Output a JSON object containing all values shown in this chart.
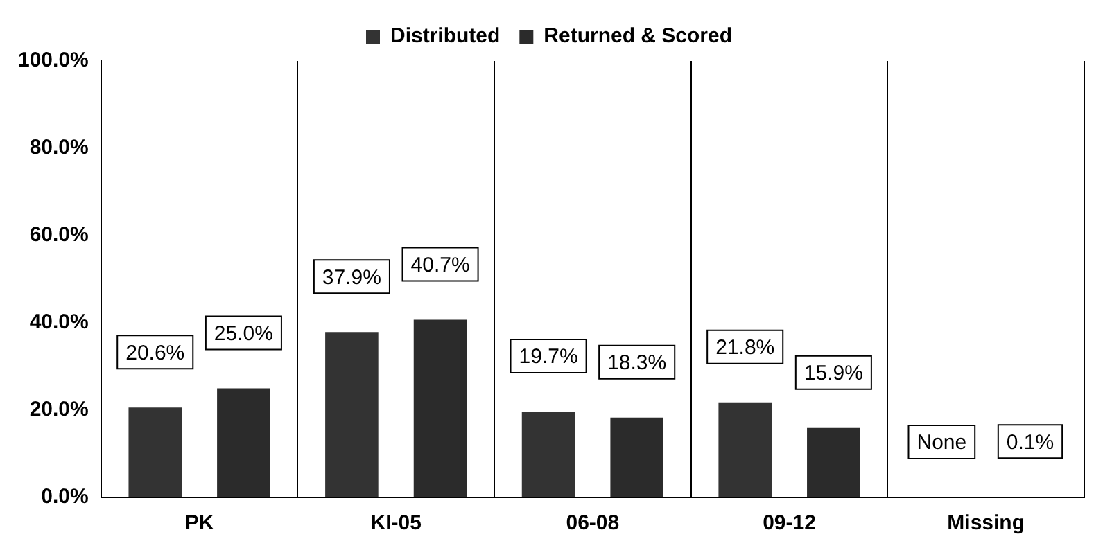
{
  "chart_data": {
    "type": "bar",
    "categories": [
      "PK",
      "KI-05",
      "06-08",
      "09-12",
      "Missing"
    ],
    "series": [
      {
        "name": "Distributed",
        "color": "#333333",
        "values": [
          20.6,
          37.9,
          19.7,
          21.8,
          null
        ],
        "value_labels": [
          "20.6%",
          "37.9%",
          "19.7%",
          "21.8%",
          "None"
        ]
      },
      {
        "name": "Returned & Scored",
        "color": "#2b2b2b",
        "values": [
          25.0,
          40.7,
          18.3,
          15.9,
          0.1
        ],
        "value_labels": [
          "25.0%",
          "40.7%",
          "18.3%",
          "15.9%",
          "0.1%"
        ]
      }
    ],
    "ylim": [
      0,
      100
    ],
    "yticks": [
      {
        "value": 0,
        "label": "0.0%"
      },
      {
        "value": 20,
        "label": "20.0%"
      },
      {
        "value": 40,
        "label": "40.0%"
      },
      {
        "value": 60,
        "label": "60.0%"
      },
      {
        "value": 80,
        "label": "80.0%"
      },
      {
        "value": 100,
        "label": "100.0%"
      }
    ],
    "grid": "x",
    "legend": "top"
  }
}
